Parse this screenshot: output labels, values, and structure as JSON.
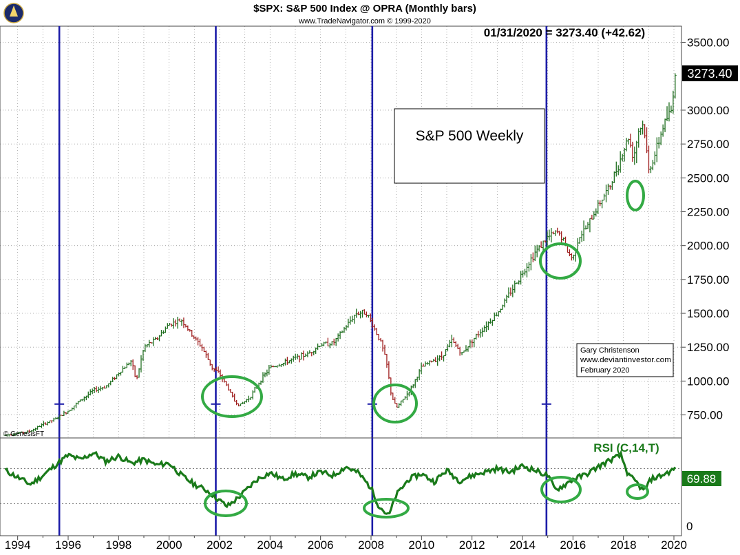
{
  "header": {
    "title": "$SPX:  S&P 500 Index @ OPRA  (Monthly bars)",
    "source": "www.TradeNavigator.com © 1999-2020",
    "last_bar": "01/31/2020 = 3273.40 (+42.62)"
  },
  "copyright": "© GenesisFT",
  "annotations": {
    "box_label": "S&P 500 Weekly",
    "author_note": [
      "Gary Christenson",
      "www.deviantinvestor.com",
      "February 2020"
    ]
  },
  "colors": {
    "bar_up": "#1f6e1f",
    "bar_down": "#a02020",
    "cycle_line": "#1c1ca8",
    "circle": "#33aa44",
    "rsi_line": "#1a7a1a",
    "last_badge_bg": "#000000",
    "rsi_badge_bg": "#1a7a1a"
  },
  "chart_data": [
    {
      "type": "line",
      "title": "$SPX:  S&P 500 Index @ OPRA  (Monthly bars)",
      "style": "ohlc-bars",
      "last_value": "3273.40",
      "x_ticks": [
        "1994",
        "1996",
        "1998",
        "2000",
        "2002",
        "2004",
        "2006",
        "2008",
        "2010",
        "2012",
        "2014",
        "2016",
        "2018",
        "2020"
      ],
      "y_ticks": [
        "750.00",
        "1000.00",
        "1250.00",
        "1500.00",
        "1750.00",
        "2000.00",
        "2250.00",
        "2500.00",
        "2750.00",
        "3000.00",
        "3500.00"
      ],
      "ylim": [
        580,
        3620
      ],
      "xlim": [
        1993.3,
        2020.3
      ],
      "grid": true,
      "vertical_cycle_lines": [
        1995.65,
        2001.85,
        2008.05,
        2014.95
      ],
      "series": [
        {
          "x": [
            1993.5,
            1994.5,
            1995.0,
            1995.5,
            1996.0,
            1996.5,
            1997.0,
            1997.5,
            1998.0,
            1998.5,
            1998.7,
            1999.0,
            1999.5,
            2000.0,
            2000.5,
            2000.9,
            2001.3,
            2001.7,
            2002.0,
            2002.3,
            2002.6,
            2002.8,
            2003.2,
            2003.6,
            2004.0,
            2004.5,
            2005.0,
            2005.5,
            2006.0,
            2006.5,
            2007.0,
            2007.4,
            2007.8,
            2008.1,
            2008.4,
            2008.6,
            2008.8,
            2009.0,
            2009.3,
            2009.6,
            2010.0,
            2010.4,
            2010.8,
            2011.2,
            2011.6,
            2012.0,
            2012.5,
            2013.0,
            2013.5,
            2014.0,
            2014.5,
            2015.0,
            2015.4,
            2015.6,
            2015.8,
            2016.0,
            2016.2,
            2016.6,
            2017.0,
            2017.5,
            2018.0,
            2018.2,
            2018.4,
            2018.6,
            2018.8,
            2019.0,
            2019.3,
            2019.6,
            2019.9,
            2020.05
          ],
          "values": [
            600,
            630,
            680,
            720,
            780,
            860,
            930,
            960,
            1060,
            1150,
            1000,
            1250,
            1310,
            1420,
            1450,
            1340,
            1250,
            1100,
            1050,
            960,
            850,
            820,
            880,
            1000,
            1100,
            1130,
            1170,
            1200,
            1270,
            1280,
            1400,
            1500,
            1510,
            1400,
            1280,
            1150,
            900,
            800,
            870,
            950,
            1100,
            1150,
            1180,
            1300,
            1200,
            1300,
            1400,
            1500,
            1650,
            1800,
            1950,
            2060,
            2100,
            2050,
            1950,
            1900,
            2050,
            2150,
            2300,
            2450,
            2700,
            2800,
            2650,
            2850,
            2900,
            2550,
            2700,
            2900,
            3000,
            3273
          ]
        }
      ]
    },
    {
      "type": "line",
      "title": "RSI (C,14,T)",
      "last_value": "69.88",
      "y_ticks": [
        "0"
      ],
      "ylim": [
        0,
        100
      ],
      "reference_lines": [
        30,
        70
      ],
      "series": [
        {
          "x": [
            1993.5,
            1994.0,
            1994.5,
            1995.0,
            1995.5,
            1996.0,
            1996.5,
            1997.0,
            1997.5,
            1998.0,
            1998.5,
            1999.0,
            1999.5,
            2000.0,
            2000.5,
            2001.0,
            2001.5,
            2001.9,
            2002.3,
            2002.7,
            2003.0,
            2003.5,
            2004.0,
            2004.5,
            2005.0,
            2005.5,
            2006.0,
            2006.5,
            2007.0,
            2007.5,
            2008.0,
            2008.3,
            2008.7,
            2009.0,
            2009.5,
            2010.0,
            2010.5,
            2011.0,
            2011.5,
            2012.0,
            2012.5,
            2013.0,
            2013.5,
            2014.0,
            2014.5,
            2015.0,
            2015.3,
            2015.6,
            2016.0,
            2016.5,
            2017.0,
            2017.5,
            2017.9,
            2018.2,
            2018.5,
            2018.8,
            2019.1,
            2019.5,
            2019.8,
            2020.05
          ],
          "values": [
            68,
            60,
            52,
            62,
            74,
            85,
            80,
            88,
            78,
            84,
            76,
            80,
            74,
            76,
            62,
            52,
            45,
            36,
            27,
            36,
            44,
            58,
            65,
            58,
            64,
            60,
            66,
            62,
            72,
            65,
            48,
            28,
            16,
            40,
            58,
            64,
            55,
            68,
            56,
            62,
            66,
            70,
            66,
            73,
            68,
            62,
            46,
            50,
            58,
            63,
            72,
            80,
            85,
            62,
            55,
            44,
            58,
            62,
            66,
            69.88
          ]
        }
      ]
    }
  ]
}
